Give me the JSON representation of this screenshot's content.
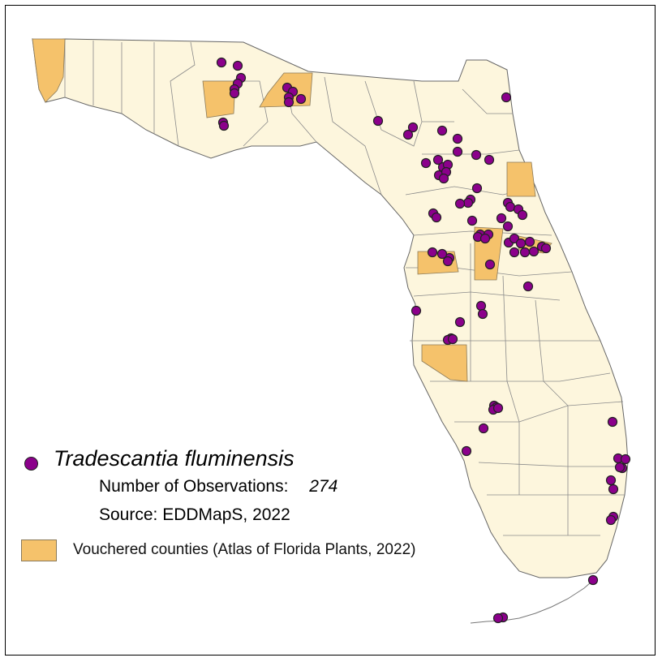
{
  "legend": {
    "species_name": "Tradescantia fluminensis",
    "observations_label": "Number of Observations:",
    "observations_count": "274",
    "source_label": "Source: EDDMapS, 2022",
    "vouchered_label": "Vouchered counties (Atlas of Florida Plants, 2022)"
  },
  "colors": {
    "land": "#fdf6dd",
    "county_border": "#8a8a8a",
    "vouchered_fill": "#f5c26b",
    "observation_fill": "#8b008b",
    "observation_outline": "#222222"
  }
}
